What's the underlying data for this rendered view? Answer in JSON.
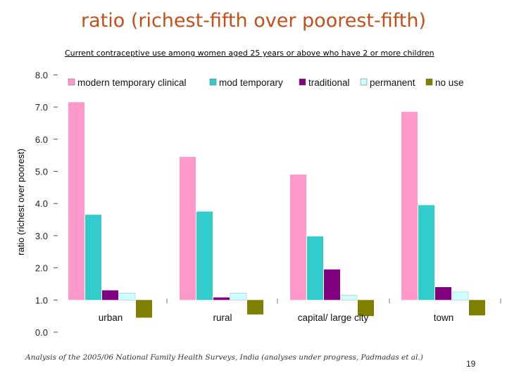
{
  "slide": {
    "title": "ratio (richest-fifth over poorest-fifth)",
    "source_note": "Analysis of the 2005/06 National Family Health Surveys, India (analyses under progress, Padmadas et al.)",
    "page_number": "19"
  },
  "chart_data": {
    "type": "bar",
    "title": "Current contraceptive use among women aged 25 years or above who have 2 or more children",
    "xlabel": "",
    "ylabel": "ratio (richest over poorest)",
    "baseline": 1.0,
    "ylim": [
      0.0,
      8.0
    ],
    "yticks": [
      "0.0",
      "1.0",
      "2.0",
      "3.0",
      "4.0",
      "5.0",
      "6.0",
      "7.0",
      "8.0"
    ],
    "ytick_values": [
      0,
      1,
      2,
      3,
      4,
      5,
      6,
      7,
      8
    ],
    "grid": false,
    "legend_position": "top",
    "categories": [
      "urban",
      "rural",
      "capital/ large city",
      "town"
    ],
    "series": [
      {
        "name": "modern temporary clinical",
        "color": "#ff99cc",
        "values": [
          7.15,
          5.45,
          4.9,
          6.85
        ]
      },
      {
        "name": "mod temporary",
        "color": "#33cccc",
        "values": [
          3.65,
          3.75,
          2.98,
          3.95
        ]
      },
      {
        "name": "traditional",
        "color": "#800080",
        "values": [
          1.3,
          1.08,
          1.95,
          1.4
        ]
      },
      {
        "name": "permanent",
        "color": "#ccffff",
        "values": [
          1.22,
          1.22,
          1.15,
          1.25
        ]
      },
      {
        "name": "no use",
        "color": "#808000",
        "values": [
          0.45,
          0.55,
          0.5,
          0.52
        ]
      }
    ]
  }
}
